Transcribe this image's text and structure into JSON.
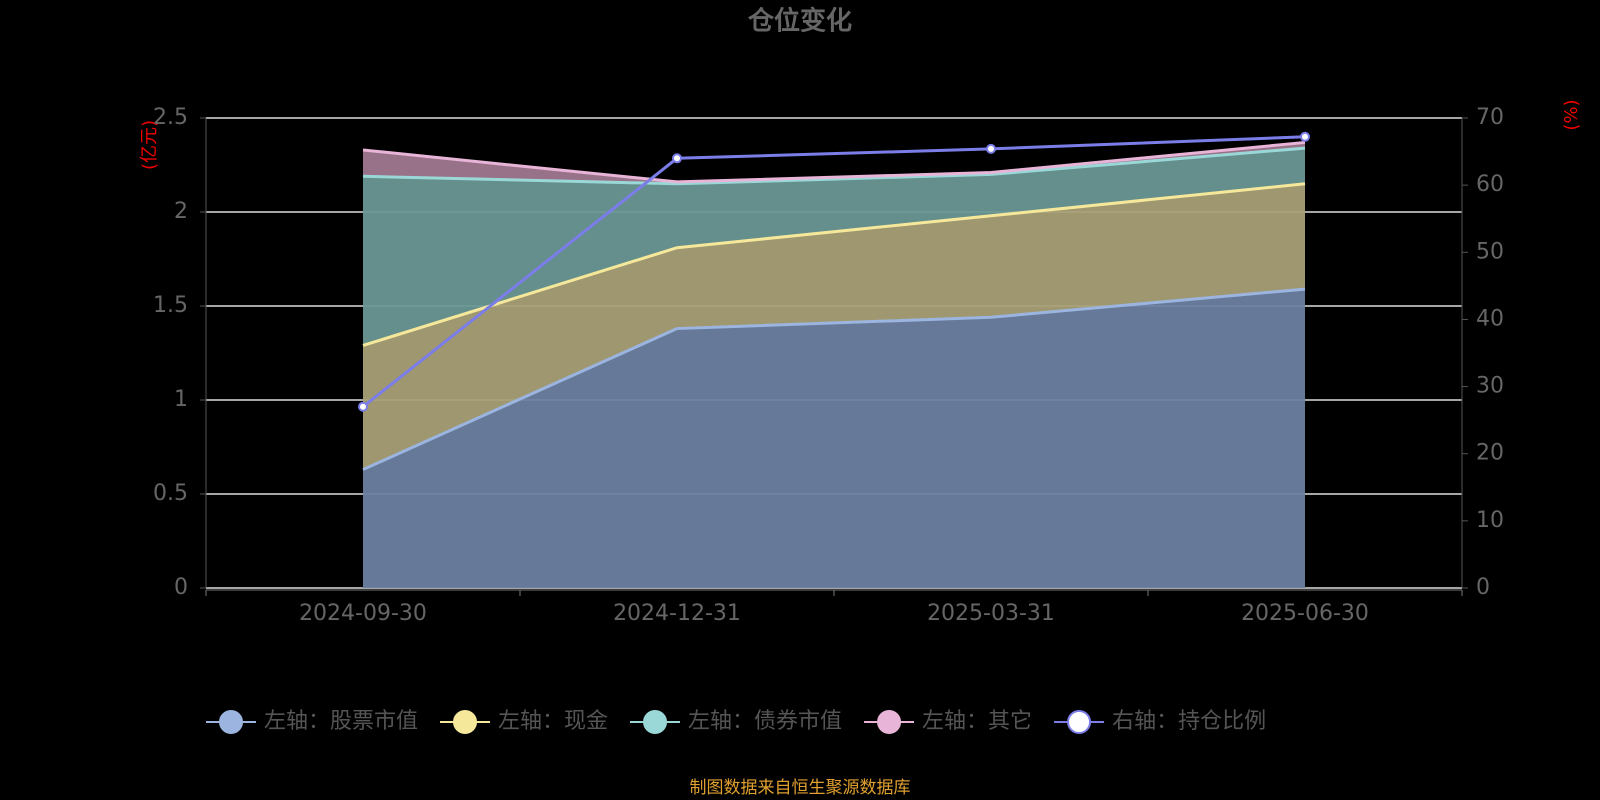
{
  "chart_data": {
    "type": "stacked-area-line",
    "title": "仓位变化",
    "y_label": "(亿元)",
    "y2_label": "(%)",
    "categories": [
      "2024-09-30",
      "2024-12-31",
      "2025-03-31",
      "2025-06-30"
    ],
    "series": [
      {
        "name": "左轴：股票市值",
        "color": "#9bb5e0",
        "values": [
          0.63,
          1.38,
          1.44,
          1.59
        ]
      },
      {
        "name": "左轴：现金",
        "color": "#f5e89b",
        "values": [
          0.66,
          0.43,
          0.54,
          0.56
        ]
      },
      {
        "name": "左轴：债券市值",
        "color": "#9ad8d8",
        "values": [
          0.9,
          0.34,
          0.22,
          0.19
        ]
      },
      {
        "name": "左轴：其它",
        "color": "#e8b4d8",
        "values": [
          0.14,
          0.01,
          0.01,
          0.03
        ]
      },
      {
        "name": "右轴：持仓比例",
        "color": "#7b7de8",
        "axis": "y2",
        "values": [
          27.0,
          64.0,
          65.4,
          67.2
        ]
      }
    ],
    "ylim": [
      0,
      2.5
    ],
    "yticks": [
      0,
      0.5,
      1,
      1.5,
      2,
      2.5
    ],
    "y2lim": [
      0,
      70
    ],
    "y2ticks": [
      0,
      10,
      20,
      30,
      40,
      50,
      60,
      70
    ],
    "grid": true,
    "source": "制图数据来自恒生聚源数据库"
  }
}
